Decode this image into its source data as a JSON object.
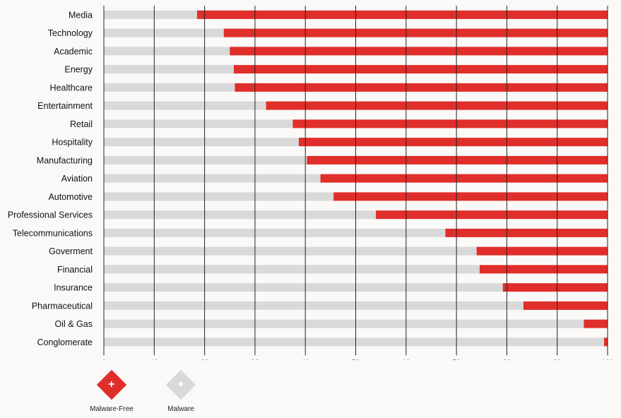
{
  "chart_data": {
    "type": "bar",
    "orientation": "horizontal",
    "stacked": true,
    "categories": [
      "Media",
      "Technology",
      "Academic",
      "Energy",
      "Healthcare",
      "Entertainment",
      "Retail",
      "Hospitality",
      "Manufacturing",
      "Aviation",
      "Automotive",
      "Professional Services",
      "Telecommunications",
      "Goverment",
      "Financial",
      "Insurance",
      "Pharmaceutical",
      "Oil & Gas",
      "Conglomerate"
    ],
    "series": [
      {
        "name": "Malware",
        "color": "#d9d9d9",
        "values": [
          18.5,
          23.8,
          25,
          25.8,
          26,
          32.2,
          37.5,
          38.7,
          40.3,
          43,
          45.6,
          54,
          67.8,
          74,
          74.6,
          79.2,
          83.3,
          95.3,
          99.3
        ]
      },
      {
        "name": "Malware-Free",
        "color": "#e02e2b",
        "values": [
          81.5,
          76.2,
          75,
          74.2,
          74,
          67.8,
          62.5,
          61.3,
          59.7,
          57,
          54.4,
          46,
          32.2,
          26,
          25.4,
          20.8,
          16.7,
          4.7,
          0.7
        ]
      }
    ],
    "xlim": [
      0,
      100
    ],
    "xticks": [
      0,
      10,
      20,
      30,
      40,
      50,
      60,
      70,
      80,
      90,
      100
    ],
    "grid": true,
    "legend_position": "bottom-left"
  },
  "legend": {
    "items": [
      {
        "label": "Malware-Free",
        "color": "#e02e2b",
        "icon": "plus-icon"
      },
      {
        "label": "Malware",
        "color": "#d9d9d9",
        "icon": "plus-icon"
      }
    ]
  }
}
